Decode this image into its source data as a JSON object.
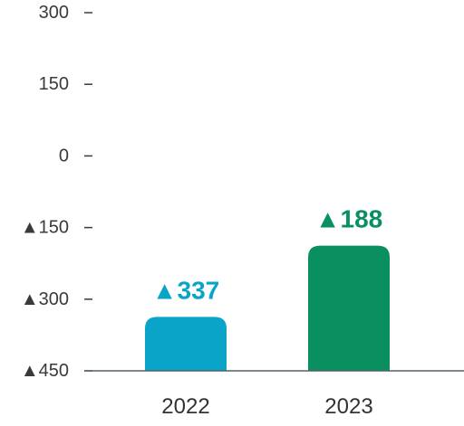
{
  "chart_data": {
    "type": "bar",
    "categories": [
      "2022",
      "2023"
    ],
    "values": [
      -337,
      -188
    ],
    "value_labels": [
      "▲337",
      "▲188"
    ],
    "bar_colors": [
      "#0aa4c9",
      "#0a9060"
    ],
    "ylim": [
      -450,
      300
    ],
    "yticks": [
      {
        "value": 300,
        "label": "300"
      },
      {
        "value": 150,
        "label": "150"
      },
      {
        "value": 0,
        "label": "0"
      },
      {
        "value": -150,
        "label": "▲150"
      },
      {
        "value": -300,
        "label": "▲300"
      },
      {
        "value": -450,
        "label": "▲450"
      }
    ],
    "grid": false
  }
}
